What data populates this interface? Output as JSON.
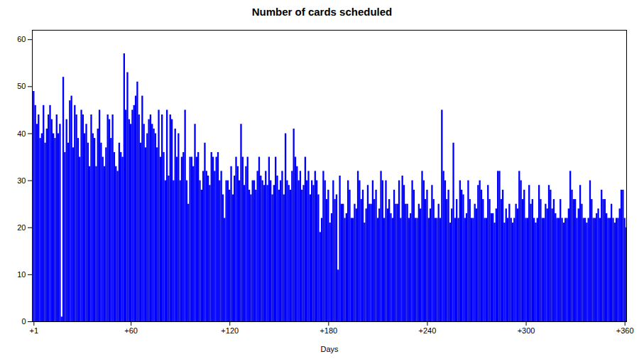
{
  "chart_data": {
    "type": "bar",
    "title": "Number of cards scheduled",
    "xlabel": "Days",
    "color": "#0000ff",
    "xlim": [
      0,
      361
    ],
    "ylim": [
      0,
      62
    ],
    "xticks": [
      {
        "value": 1,
        "label": "+1"
      },
      {
        "value": 60,
        "label": "+60"
      },
      {
        "value": 120,
        "label": "+120"
      },
      {
        "value": 180,
        "label": "+180"
      },
      {
        "value": 240,
        "label": "+240"
      },
      {
        "value": 300,
        "label": "+300"
      },
      {
        "value": 360,
        "label": "+360"
      }
    ],
    "yticks": [
      0,
      10,
      20,
      30,
      40,
      50,
      60
    ],
    "x": [
      1,
      2,
      3,
      4,
      5,
      6,
      7,
      8,
      9,
      10,
      11,
      12,
      13,
      14,
      15,
      16,
      17,
      18,
      19,
      20,
      21,
      22,
      23,
      24,
      25,
      26,
      27,
      28,
      29,
      30,
      31,
      32,
      33,
      34,
      35,
      36,
      37,
      38,
      39,
      40,
      41,
      42,
      43,
      44,
      45,
      46,
      47,
      48,
      49,
      50,
      51,
      52,
      53,
      54,
      55,
      56,
      57,
      58,
      59,
      60,
      61,
      62,
      63,
      64,
      65,
      66,
      67,
      68,
      69,
      70,
      71,
      72,
      73,
      74,
      75,
      76,
      77,
      78,
      79,
      80,
      81,
      82,
      83,
      84,
      85,
      86,
      87,
      88,
      89,
      90,
      91,
      92,
      93,
      94,
      95,
      96,
      97,
      98,
      99,
      100,
      101,
      102,
      103,
      104,
      105,
      106,
      107,
      108,
      109,
      110,
      111,
      112,
      113,
      114,
      115,
      116,
      117,
      118,
      119,
      120,
      121,
      122,
      123,
      124,
      125,
      126,
      127,
      128,
      129,
      130,
      131,
      132,
      133,
      134,
      135,
      136,
      137,
      138,
      139,
      140,
      141,
      142,
      143,
      144,
      145,
      146,
      147,
      148,
      149,
      150,
      151,
      152,
      153,
      154,
      155,
      156,
      157,
      158,
      159,
      160,
      161,
      162,
      163,
      164,
      165,
      166,
      167,
      168,
      169,
      170,
      171,
      172,
      173,
      174,
      175,
      176,
      177,
      178,
      179,
      180,
      181,
      182,
      183,
      184,
      185,
      186,
      187,
      188,
      189,
      190,
      191,
      192,
      193,
      194,
      195,
      196,
      197,
      198,
      199,
      200,
      201,
      202,
      203,
      204,
      205,
      206,
      207,
      208,
      209,
      210,
      211,
      212,
      213,
      214,
      215,
      216,
      217,
      218,
      219,
      220,
      221,
      222,
      223,
      224,
      225,
      226,
      227,
      228,
      229,
      230,
      231,
      232,
      233,
      234,
      235,
      236,
      237,
      238,
      239,
      240,
      241,
      242,
      243,
      244,
      245,
      246,
      247,
      248,
      249,
      250,
      251,
      252,
      253,
      254,
      255,
      256,
      257,
      258,
      259,
      260,
      261,
      262,
      263,
      264,
      265,
      266,
      267,
      268,
      269,
      270,
      271,
      272,
      273,
      274,
      275,
      276,
      277,
      278,
      279,
      280,
      281,
      282,
      283,
      284,
      285,
      286,
      287,
      288,
      289,
      290,
      291,
      292,
      293,
      294,
      295,
      296,
      297,
      298,
      299,
      300,
      301,
      302,
      303,
      304,
      305,
      306,
      307,
      308,
      309,
      310,
      311,
      312,
      313,
      314,
      315,
      316,
      317,
      318,
      319,
      320,
      321,
      322,
      323,
      324,
      325,
      326,
      327,
      328,
      329,
      330,
      331,
      332,
      333,
      334,
      335,
      336,
      337,
      338,
      339,
      340,
      341,
      342,
      343,
      344,
      345,
      346,
      347,
      348,
      349,
      350,
      351,
      352,
      353,
      354,
      355,
      356,
      357,
      358,
      359,
      360,
      361
    ],
    "values": [
      49,
      46,
      42,
      44,
      39,
      40,
      46,
      38,
      41,
      44,
      46,
      43,
      40,
      39,
      44,
      40,
      42,
      1,
      52,
      36,
      43,
      38,
      47,
      48,
      37,
      46,
      44,
      39,
      35,
      45,
      44,
      40,
      42,
      38,
      33,
      44,
      40,
      39,
      33,
      41,
      45,
      38,
      35,
      33,
      37,
      44,
      43,
      39,
      44,
      36,
      33,
      32,
      38,
      36,
      35,
      57,
      45,
      53,
      43,
      42,
      45,
      46,
      48,
      51,
      44,
      38,
      48,
      42,
      37,
      40,
      43,
      44,
      42,
      41,
      40,
      37,
      45,
      35,
      44,
      36,
      30,
      45,
      31,
      44,
      43,
      30,
      41,
      35,
      40,
      30,
      35,
      36,
      45,
      30,
      25,
      35,
      35,
      33,
      42,
      35,
      36,
      30,
      28,
      32,
      38,
      32,
      31,
      29,
      36,
      35,
      32,
      35,
      36,
      30,
      32,
      27,
      22,
      30,
      30,
      28,
      33,
      27,
      31,
      35,
      33,
      30,
      42,
      35,
      29,
      33,
      35,
      28,
      27,
      30,
      30,
      28,
      32,
      35,
      31,
      30,
      29,
      32,
      29,
      35,
      30,
      27,
      29,
      35,
      31,
      28,
      30,
      32,
      27,
      40,
      30,
      29,
      28,
      32,
      41,
      35,
      33,
      30,
      32,
      28,
      29,
      35,
      30,
      32,
      27,
      30,
      29,
      32,
      30,
      27,
      19,
      22,
      32,
      30,
      26,
      28,
      21,
      23,
      30,
      26,
      27,
      11,
      31,
      25,
      25,
      22,
      23,
      30,
      28,
      22,
      22,
      25,
      24,
      32,
      30,
      26,
      28,
      21,
      24,
      29,
      25,
      25,
      30,
      26,
      28,
      22,
      24,
      32,
      30,
      22,
      30,
      24,
      26,
      23,
      22,
      28,
      25,
      25,
      30,
      22,
      31,
      29,
      25,
      25,
      22,
      23,
      30,
      28,
      22,
      22,
      25,
      24,
      32,
      30,
      26,
      28,
      22,
      24,
      29,
      26,
      22,
      22,
      25,
      22,
      45,
      32,
      30,
      26,
      28,
      21,
      24,
      38,
      22,
      26,
      22,
      30,
      28,
      27,
      22,
      23,
      30,
      26,
      22,
      22,
      25,
      24,
      29,
      30,
      28,
      26,
      22,
      22,
      29,
      26,
      23,
      23,
      21,
      24,
      32,
      32,
      26,
      28,
      21,
      24,
      22,
      25,
      22,
      21,
      22,
      25,
      24,
      32,
      30,
      26,
      28,
      22,
      22,
      29,
      25,
      26,
      22,
      21,
      22,
      29,
      26,
      22,
      22,
      25,
      24,
      29,
      28,
      24,
      26,
      23,
      22,
      22,
      26,
      22,
      21,
      22,
      22,
      24,
      32,
      28,
      26,
      26,
      22,
      24,
      29,
      25,
      22,
      22,
      21,
      22,
      30,
      26,
      22,
      22,
      23,
      24,
      22,
      28,
      26,
      26,
      23,
      22,
      22,
      25,
      22,
      21,
      22,
      22,
      24,
      28,
      28,
      22,
      20
    ]
  }
}
